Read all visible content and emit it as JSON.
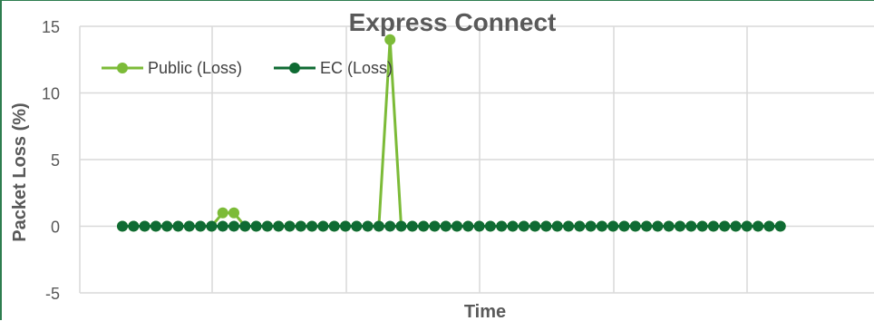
{
  "chart_data": {
    "type": "line",
    "title": "Express Connect",
    "xlabel": "Time",
    "ylabel": "Packet Loss (%)",
    "ylim": [
      -5,
      15
    ],
    "yticks": [
      -5,
      0,
      5,
      10,
      15
    ],
    "grid": true,
    "legend_position": "top-left",
    "x": [
      1,
      2,
      3,
      4,
      5,
      6,
      7,
      8,
      9,
      10,
      11,
      12,
      13,
      14,
      15,
      16,
      17,
      18,
      19,
      20,
      21,
      22,
      23,
      24,
      25,
      26,
      27,
      28,
      29,
      30,
      31,
      32,
      33,
      34,
      35,
      36,
      37,
      38,
      39,
      40,
      41,
      42,
      43,
      44,
      45,
      46,
      47,
      48,
      49,
      50,
      51,
      52,
      53,
      54,
      55,
      56,
      57,
      58,
      59,
      60
    ],
    "series": [
      {
        "name": "Public (Loss)",
        "color": "#7cbb38",
        "values": [
          0,
          0,
          0,
          0,
          0,
          0,
          0,
          0,
          0,
          1,
          1,
          0,
          0,
          0,
          0,
          0,
          0,
          0,
          0,
          0,
          0,
          0,
          0,
          0,
          14,
          0,
          0,
          0,
          0,
          0,
          0,
          0,
          0,
          0,
          0,
          0,
          0,
          0,
          0,
          0,
          0,
          0,
          0,
          0,
          0,
          0,
          0,
          0,
          0,
          0,
          0,
          0,
          0,
          0,
          0,
          0,
          0,
          0,
          0,
          0
        ]
      },
      {
        "name": "EC (Loss)",
        "color": "#0f6b33",
        "values": [
          0,
          0,
          0,
          0,
          0,
          0,
          0,
          0,
          0,
          0,
          0,
          0,
          0,
          0,
          0,
          0,
          0,
          0,
          0,
          0,
          0,
          0,
          0,
          0,
          0,
          0,
          0,
          0,
          0,
          0,
          0,
          0,
          0,
          0,
          0,
          0,
          0,
          0,
          0,
          0,
          0,
          0,
          0,
          0,
          0,
          0,
          0,
          0,
          0,
          0,
          0,
          0,
          0,
          0,
          0,
          0,
          0,
          0,
          0,
          0
        ]
      }
    ]
  }
}
